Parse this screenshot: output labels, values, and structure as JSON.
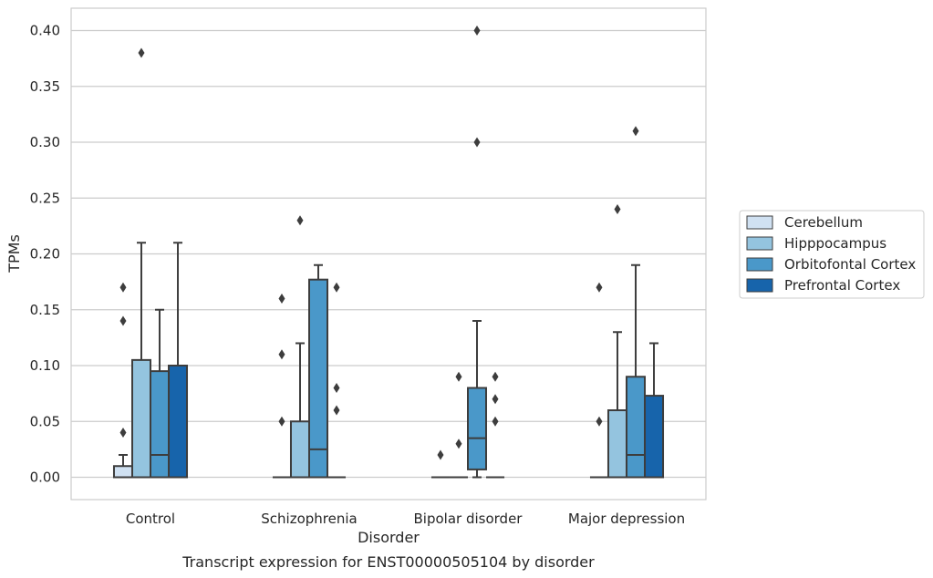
{
  "chart_data": {
    "type": "boxplot",
    "xlabel": "Disorder",
    "ylabel": "TPMs",
    "caption": "Transcript expression for ENST00000505104 by disorder",
    "ylim": [
      -0.02,
      0.42
    ],
    "yticks": [
      0.0,
      0.05,
      0.1,
      0.15,
      0.2,
      0.25,
      0.3,
      0.35,
      0.4
    ],
    "ytick_labels": [
      "0.00",
      "0.05",
      "0.10",
      "0.15",
      "0.20",
      "0.25",
      "0.30",
      "0.35",
      "0.40"
    ],
    "grid": "horizontal",
    "legend_position": "right",
    "categories": [
      "Control",
      "Schizophrenia",
      "Bipolar disorder",
      "Major depression"
    ],
    "series": [
      {
        "name": "Cerebellum",
        "color": "#d0e1f2",
        "boxes": [
          {
            "q1": 0.0,
            "median": 0.0,
            "q3": 0.01,
            "whisker_low": 0.0,
            "whisker_high": 0.02,
            "outliers": [
              0.04,
              0.14,
              0.17
            ]
          },
          {
            "q1": 0.0,
            "median": 0.0,
            "q3": 0.0,
            "whisker_low": 0.0,
            "whisker_high": 0.0,
            "outliers": [
              0.05,
              0.11,
              0.16
            ]
          },
          {
            "q1": 0.0,
            "median": 0.0,
            "q3": 0.0,
            "whisker_low": 0.0,
            "whisker_high": 0.0,
            "outliers": [
              0.02
            ]
          },
          {
            "q1": 0.0,
            "median": 0.0,
            "q3": 0.0,
            "whisker_low": 0.0,
            "whisker_high": 0.0,
            "outliers": [
              0.05,
              0.17
            ]
          }
        ]
      },
      {
        "name": "Hipppocampus",
        "color": "#94c4df",
        "boxes": [
          {
            "q1": 0.0,
            "median": 0.0,
            "q3": 0.105,
            "whisker_low": 0.0,
            "whisker_high": 0.21,
            "outliers": [
              0.38
            ]
          },
          {
            "q1": 0.0,
            "median": 0.0,
            "q3": 0.05,
            "whisker_low": 0.0,
            "whisker_high": 0.12,
            "outliers": [
              0.23
            ]
          },
          {
            "q1": 0.0,
            "median": 0.0,
            "q3": 0.0,
            "whisker_low": 0.0,
            "whisker_high": 0.0,
            "outliers": [
              0.03,
              0.09
            ]
          },
          {
            "q1": 0.0,
            "median": 0.0,
            "q3": 0.06,
            "whisker_low": 0.0,
            "whisker_high": 0.13,
            "outliers": [
              0.24
            ]
          }
        ]
      },
      {
        "name": "Orbitofontal Cortex",
        "color": "#4a98c9",
        "boxes": [
          {
            "q1": 0.0,
            "median": 0.02,
            "q3": 0.095,
            "whisker_low": 0.0,
            "whisker_high": 0.15,
            "outliers": []
          },
          {
            "q1": 0.0,
            "median": 0.025,
            "q3": 0.177,
            "whisker_low": 0.0,
            "whisker_high": 0.19,
            "outliers": []
          },
          {
            "q1": 0.007,
            "median": 0.035,
            "q3": 0.08,
            "whisker_low": 0.0,
            "whisker_high": 0.14,
            "outliers": [
              0.3,
              0.4
            ]
          },
          {
            "q1": 0.0,
            "median": 0.02,
            "q3": 0.09,
            "whisker_low": 0.0,
            "whisker_high": 0.19,
            "outliers": [
              0.31
            ]
          }
        ]
      },
      {
        "name": "Prefrontal Cortex",
        "color": "#1764ab",
        "boxes": [
          {
            "q1": 0.0,
            "median": 0.0,
            "q3": 0.1,
            "whisker_low": 0.0,
            "whisker_high": 0.21,
            "outliers": []
          },
          {
            "q1": 0.0,
            "median": 0.0,
            "q3": 0.0,
            "whisker_low": 0.0,
            "whisker_high": 0.0,
            "outliers": [
              0.06,
              0.08,
              0.17
            ]
          },
          {
            "q1": 0.0,
            "median": 0.0,
            "q3": 0.0,
            "whisker_low": 0.0,
            "whisker_high": 0.0,
            "outliers": [
              0.05,
              0.07,
              0.09
            ]
          },
          {
            "q1": 0.0,
            "median": 0.0,
            "q3": 0.073,
            "whisker_low": 0.0,
            "whisker_high": 0.12,
            "outliers": []
          }
        ]
      }
    ]
  }
}
